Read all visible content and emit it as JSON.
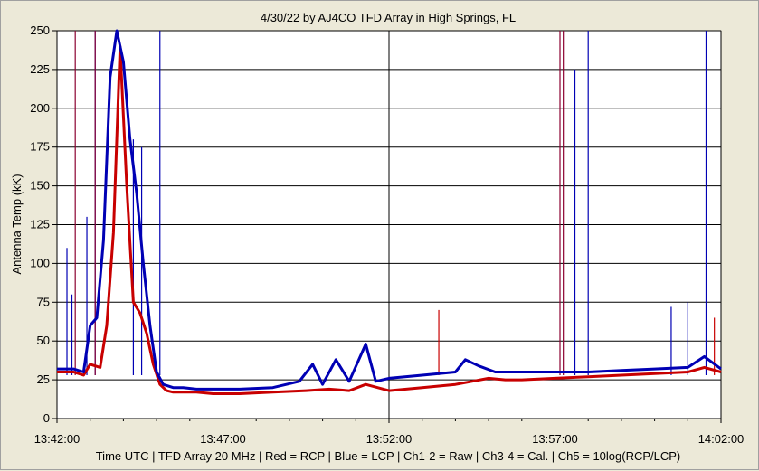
{
  "chart_data": {
    "type": "line",
    "title": "4/30/22  by  AJ4CO TFD Array  in  High Springs, FL",
    "ylabel": "Antenna Temp (kK)",
    "xlabel": "Time UTC | TFD Array 20 MHz | Red = RCP | Blue = LCP | Ch1-2 = Raw | Ch3-4 = Cal. | Ch5 = 10log(RCP/LCP)",
    "ylim": [
      0,
      250
    ],
    "yticks": [
      "0",
      "25",
      "50",
      "75",
      "100",
      "125",
      "150",
      "175",
      "200",
      "225",
      "250"
    ],
    "xlim_minutes": [
      0,
      20
    ],
    "xticks": [
      "13:42:00",
      "13:47:00",
      "13:52:00",
      "13:57:00",
      "14:02:00"
    ],
    "grid": true,
    "series": [
      {
        "name": "RCP",
        "color": "#c80000",
        "x": [
          0,
          0.5,
          0.8,
          1.0,
          1.3,
          1.5,
          1.7,
          1.9,
          2.1,
          2.3,
          2.5,
          2.7,
          2.9,
          3.1,
          3.3,
          3.5,
          3.8,
          4.2,
          4.7,
          5.5,
          6.5,
          7.5,
          8.2,
          8.8,
          9.3,
          10,
          11,
          12,
          12.5,
          13,
          13.5,
          14,
          15,
          16,
          17,
          18,
          19,
          19.5,
          20
        ],
        "y": [
          30,
          30,
          28,
          35,
          33,
          60,
          120,
          240,
          150,
          75,
          68,
          55,
          35,
          22,
          18,
          17,
          17,
          17,
          16,
          16,
          17,
          18,
          19,
          18,
          22,
          18,
          20,
          22,
          24,
          26,
          25,
          25,
          26,
          27,
          28,
          29,
          30,
          33,
          30
        ]
      },
      {
        "name": "LCP",
        "color": "#0000b4",
        "x": [
          0,
          0.5,
          0.8,
          1.0,
          1.2,
          1.4,
          1.6,
          1.8,
          2.0,
          2.2,
          2.4,
          2.6,
          2.8,
          3.0,
          3.2,
          3.5,
          3.8,
          4.2,
          4.7,
          5.5,
          6.5,
          7.3,
          7.7,
          8.0,
          8.4,
          8.8,
          9.3,
          9.6,
          10,
          11,
          12,
          12.3,
          12.7,
          13.2,
          14,
          15,
          16,
          17,
          18,
          19,
          19.5,
          20
        ],
        "y": [
          32,
          32,
          30,
          60,
          65,
          115,
          220,
          255,
          230,
          180,
          145,
          100,
          60,
          30,
          22,
          20,
          20,
          19,
          19,
          19,
          20,
          24,
          35,
          22,
          38,
          24,
          48,
          24,
          26,
          28,
          30,
          38,
          34,
          30,
          30,
          30,
          30,
          31,
          32,
          33,
          40,
          32
        ]
      }
    ]
  }
}
